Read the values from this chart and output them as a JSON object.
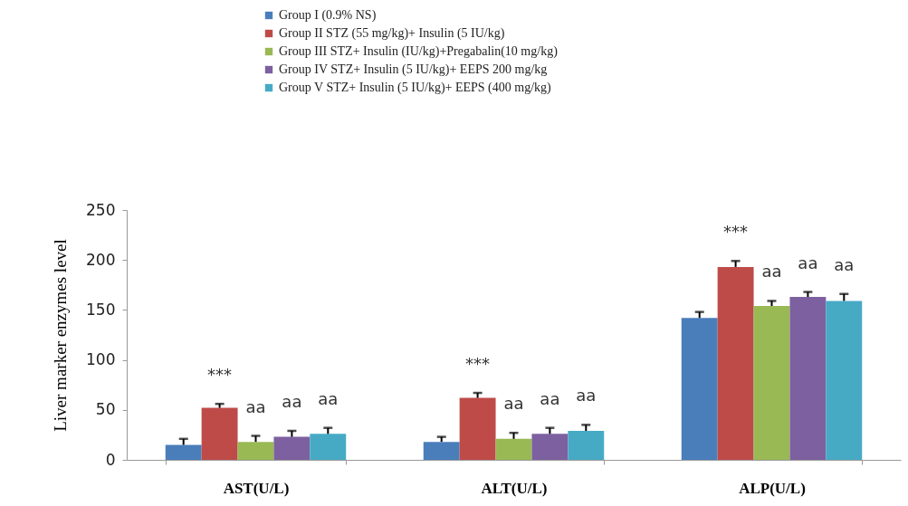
{
  "chart_data": {
    "type": "bar",
    "ylabel": "Liver marker enzymes level",
    "categories": [
      "AST(U/L)",
      "ALT(U/L)",
      "ALP(U/L)"
    ],
    "series": [
      {
        "name": "Group I (0.9% NS)",
        "color": "#4a7ebb",
        "values": [
          15,
          18,
          142
        ],
        "value_labels": [
          null,
          null,
          null
        ],
        "errors": [
          [
            15,
            21
          ],
          [
            18,
            23
          ],
          [
            142,
            148
          ]
        ]
      },
      {
        "name": "Group II STZ (55 mg/kg)+ Insulin (5 IU/kg)",
        "color": "#be4b48",
        "values": [
          52,
          62,
          193
        ],
        "value_labels": [
          "***",
          "***",
          "***"
        ],
        "errors": [
          [
            52,
            56
          ],
          [
            62,
            67
          ],
          [
            193,
            199
          ]
        ]
      },
      {
        "name": "Group III STZ+ Insulin (IU/kg)+Pregabalin(10 mg/kg)",
        "color": "#98b954",
        "values": [
          18,
          21,
          154
        ],
        "value_labels": [
          "aa",
          "aa",
          "aa"
        ],
        "errors": [
          [
            18,
            24
          ],
          [
            21,
            27
          ],
          [
            154,
            159
          ]
        ]
      },
      {
        "name": "Group IV STZ+ Insulin (5 IU/kg)+ EEPS 200 mg/kg",
        "color": "#7d60a0",
        "values": [
          23,
          26,
          163
        ],
        "value_labels": [
          "aa",
          "aa",
          "aa"
        ],
        "errors": [
          [
            23,
            29
          ],
          [
            26,
            32
          ],
          [
            163,
            168
          ]
        ]
      },
      {
        "name": "Group V STZ+ Insulin (5 IU/kg)+ EEPS (400 mg/kg)",
        "color": "#46aac5",
        "values": [
          26,
          29,
          159
        ],
        "value_labels": [
          "aa",
          "aa",
          "aa"
        ],
        "errors": [
          [
            26,
            32
          ],
          [
            29,
            35
          ],
          [
            159,
            166
          ]
        ]
      }
    ],
    "ylim": [
      0,
      250
    ],
    "yticks": [
      0,
      50,
      100,
      150,
      200,
      250
    ],
    "legend": "top",
    "grid": false
  }
}
